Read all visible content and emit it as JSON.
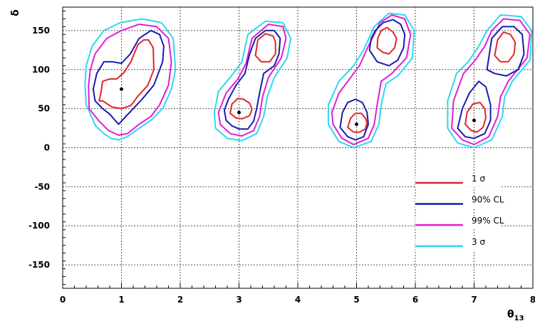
{
  "chart_data": {
    "type": "contour",
    "title": "",
    "xlabel": "θ13",
    "ylabel": "δ",
    "xlim": [
      0,
      8
    ],
    "ylim": [
      -180,
      180
    ],
    "xticks": [
      0,
      1,
      2,
      3,
      4,
      5,
      6,
      7,
      8
    ],
    "yticks": [
      -150,
      -100,
      -50,
      0,
      50,
      100,
      150
    ],
    "grid": true,
    "legend_position": "lower-right",
    "series": [
      {
        "name": "1 σ",
        "color": "#e0262a"
      },
      {
        "name": "90% CL",
        "color": "#1b1bb0"
      },
      {
        "name": "99% CL",
        "color": "#e01fd6"
      },
      {
        "name": "3 σ",
        "color": "#2fd8ee"
      }
    ],
    "true_points": [
      {
        "x": 1,
        "y": 75
      },
      {
        "x": 3,
        "y": 45
      },
      {
        "x": 5,
        "y": 30
      },
      {
        "x": 7,
        "y": 35
      }
    ],
    "contours": [
      {
        "level": "1 σ",
        "x": [
          0.68,
          0.84,
          1.0,
          1.16,
          1.28,
          1.45,
          1.55,
          1.54,
          1.46,
          1.38,
          1.28,
          1.16,
          1.04,
          0.92,
          0.8,
          0.68,
          0.65,
          0.62
        ],
        "y": [
          60,
          52,
          50,
          54,
          66,
          80,
          100,
          128,
          138,
          138,
          132,
          110,
          96,
          88,
          88,
          85,
          70,
          60
        ]
      },
      {
        "level": "90% CL",
        "x": [
          0.55,
          0.68,
          0.8,
          0.95,
          1.05,
          1.2,
          1.35,
          1.55,
          1.7,
          1.72,
          1.65,
          1.5,
          1.3,
          1.15,
          1.0,
          0.85,
          0.7,
          0.58,
          0.52,
          0.55
        ],
        "y": [
          60,
          50,
          43,
          30,
          38,
          50,
          62,
          80,
          110,
          130,
          145,
          150,
          140,
          120,
          108,
          110,
          110,
          95,
          75,
          60
        ]
      },
      {
        "level": "99% CL",
        "x": [
          0.45,
          0.62,
          0.78,
          0.95,
          1.1,
          1.3,
          1.5,
          1.65,
          1.8,
          1.85,
          1.8,
          1.6,
          1.3,
          1.0,
          0.75,
          0.55,
          0.47,
          0.44,
          0.45
        ],
        "y": [
          50,
          34,
          22,
          16,
          18,
          30,
          40,
          55,
          80,
          110,
          140,
          155,
          158,
          150,
          140,
          120,
          100,
          80,
          50
        ]
      },
      {
        "level": "3 σ",
        "x": [
          0.4,
          0.56,
          0.7,
          0.82,
          0.95,
          1.1,
          1.3,
          1.5,
          1.7,
          1.85,
          1.92,
          1.88,
          1.68,
          1.35,
          0.98,
          0.7,
          0.5,
          0.4,
          0.38,
          0.4
        ],
        "y": [
          55,
          28,
          18,
          12,
          10,
          14,
          25,
          35,
          50,
          75,
          100,
          140,
          160,
          165,
          160,
          150,
          130,
          105,
          80,
          55
        ]
      },
      {
        "level": "1 σ",
        "x": [
          2.85,
          2.95,
          3.05,
          3.18,
          3.22,
          3.18,
          3.08,
          2.98,
          2.88,
          2.85
        ],
        "y": [
          44,
          38,
          37,
          41,
          49,
          57,
          62,
          63,
          56,
          44
        ]
      },
      {
        "level": "1 σ",
        "x": [
          3.28,
          3.38,
          3.52,
          3.62,
          3.62,
          3.58,
          3.45,
          3.32,
          3.28
        ],
        "y": [
          118,
          110,
          110,
          120,
          135,
          143,
          146,
          138,
          118
        ]
      },
      {
        "level": "90% CL",
        "x": [
          2.78,
          2.88,
          3.0,
          3.15,
          3.25,
          3.3,
          3.35,
          3.42,
          3.6,
          3.68,
          3.7,
          3.6,
          3.45,
          3.28,
          3.18,
          3.1,
          2.95,
          2.82,
          2.75,
          2.78
        ],
        "y": [
          35,
          28,
          24,
          24,
          34,
          50,
          70,
          95,
          105,
          120,
          140,
          150,
          150,
          140,
          120,
          95,
          80,
          62,
          48,
          35
        ]
      },
      {
        "level": "99% CL",
        "x": [
          2.68,
          2.85,
          3.05,
          3.25,
          3.35,
          3.4,
          3.5,
          3.72,
          3.8,
          3.75,
          3.5,
          3.22,
          3.12,
          2.98,
          2.78,
          2.65,
          2.68
        ],
        "y": [
          30,
          18,
          15,
          22,
          40,
          65,
          90,
          115,
          140,
          155,
          158,
          140,
          108,
          88,
          70,
          45,
          30
        ]
      },
      {
        "level": "3 σ",
        "x": [
          2.6,
          2.8,
          3.05,
          3.3,
          3.42,
          3.48,
          3.6,
          3.82,
          3.88,
          3.75,
          3.45,
          3.15,
          3.05,
          2.85,
          2.65,
          2.58,
          2.6
        ],
        "y": [
          25,
          12,
          9,
          18,
          40,
          65,
          90,
          115,
          140,
          160,
          162,
          145,
          110,
          90,
          72,
          45,
          25
        ]
      },
      {
        "level": "1 σ",
        "x": [
          4.85,
          4.95,
          5.05,
          5.15,
          5.18,
          5.15,
          5.08,
          4.98,
          4.9,
          4.85
        ],
        "y": [
          26,
          20,
          20,
          24,
          32,
          38,
          44,
          44,
          38,
          26
        ]
      },
      {
        "level": "1 σ",
        "x": [
          5.35,
          5.45,
          5.55,
          5.65,
          5.68,
          5.62,
          5.52,
          5.42,
          5.36,
          5.35
        ],
        "y": [
          128,
          122,
          120,
          128,
          140,
          148,
          154,
          150,
          140,
          128
        ]
      },
      {
        "level": "90% CL",
        "x": [
          4.72,
          4.85,
          4.98,
          5.12,
          5.2,
          5.18,
          5.1,
          4.98,
          4.85,
          4.76,
          4.72
        ],
        "y": [
          26,
          14,
          10,
          14,
          30,
          45,
          58,
          62,
          58,
          45,
          26
        ]
      },
      {
        "level": "90% CL",
        "x": [
          5.22,
          5.35,
          5.55,
          5.7,
          5.8,
          5.82,
          5.75,
          5.62,
          5.45,
          5.32,
          5.25,
          5.22
        ],
        "y": [
          125,
          110,
          105,
          112,
          128,
          145,
          158,
          164,
          160,
          150,
          140,
          125
        ]
      },
      {
        "level": "99% CL",
        "x": [
          4.6,
          4.75,
          4.95,
          5.2,
          5.3,
          5.35,
          5.42,
          5.6,
          5.85,
          5.92,
          5.82,
          5.6,
          5.4,
          5.2,
          5.05,
          4.9,
          4.7,
          4.58,
          4.6
        ],
        "y": [
          30,
          12,
          4,
          12,
          30,
          55,
          85,
          95,
          115,
          145,
          165,
          170,
          160,
          130,
          105,
          90,
          70,
          45,
          30
        ]
      },
      {
        "level": "3 σ",
        "x": [
          4.52,
          4.7,
          4.95,
          5.25,
          5.38,
          5.42,
          5.5,
          5.7,
          5.95,
          5.98,
          5.82,
          5.55,
          5.3,
          5.12,
          4.95,
          4.7,
          4.52,
          4.52
        ],
        "y": [
          30,
          8,
          0,
          8,
          30,
          55,
          82,
          92,
          115,
          150,
          170,
          172,
          155,
          125,
          105,
          85,
          55,
          30
        ]
      },
      {
        "level": "1 σ",
        "x": [
          6.85,
          6.95,
          7.05,
          7.15,
          7.2,
          7.18,
          7.1,
          6.98,
          6.88,
          6.85
        ],
        "y": [
          30,
          22,
          20,
          26,
          38,
          50,
          58,
          56,
          45,
          30
        ]
      },
      {
        "level": "1 σ",
        "x": [
          7.35,
          7.45,
          7.58,
          7.68,
          7.7,
          7.62,
          7.5,
          7.4,
          7.35
        ],
        "y": [
          118,
          110,
          110,
          120,
          135,
          145,
          148,
          138,
          118
        ]
      },
      {
        "level": "90% CL",
        "x": [
          6.72,
          6.85,
          7.0,
          7.18,
          7.28,
          7.28,
          7.2,
          7.08,
          6.92,
          6.8,
          6.72
        ],
        "y": [
          25,
          14,
          12,
          18,
          35,
          55,
          78,
          85,
          70,
          50,
          25
        ]
      },
      {
        "level": "90% CL",
        "x": [
          7.22,
          7.35,
          7.55,
          7.75,
          7.85,
          7.82,
          7.68,
          7.48,
          7.3,
          7.22
        ],
        "y": [
          100,
          95,
          92,
          100,
          120,
          145,
          155,
          155,
          140,
          100
        ]
      },
      {
        "level": "99% CL",
        "x": [
          6.62,
          6.8,
          7.0,
          7.25,
          7.4,
          7.45,
          7.58,
          7.9,
          7.95,
          7.78,
          7.5,
          7.3,
          7.18,
          7.02,
          6.82,
          6.65,
          6.62
        ],
        "y": [
          25,
          10,
          4,
          14,
          40,
          65,
          85,
          115,
          145,
          163,
          165,
          150,
          130,
          112,
          95,
          60,
          25
        ]
      },
      {
        "level": "3 σ",
        "x": [
          6.55,
          6.72,
          7.0,
          7.3,
          7.48,
          7.52,
          7.65,
          7.95,
          7.98,
          7.8,
          7.45,
          7.22,
          7.08,
          6.9,
          6.7,
          6.55,
          6.55
        ],
        "y": [
          25,
          6,
          0,
          10,
          40,
          65,
          85,
          112,
          150,
          168,
          170,
          150,
          130,
          110,
          95,
          60,
          25
        ]
      }
    ]
  },
  "axes": {
    "xtick_labels": [
      "0",
      "1",
      "2",
      "3",
      "4",
      "5",
      "6",
      "7",
      "8"
    ],
    "ytick_labels": [
      "-150",
      "-100",
      "-50",
      "0",
      "50",
      "100",
      "150"
    ],
    "xlabel_main": "θ",
    "xlabel_sub": "13",
    "ylabel": "δ"
  },
  "legend": {
    "items": [
      {
        "label": "1 σ",
        "color": "#e0262a"
      },
      {
        "label": "90% CL",
        "color": "#1b1bb0"
      },
      {
        "label": "99% CL",
        "color": "#e01fd6"
      },
      {
        "label": "3 σ",
        "color": "#2fd8ee"
      }
    ]
  }
}
